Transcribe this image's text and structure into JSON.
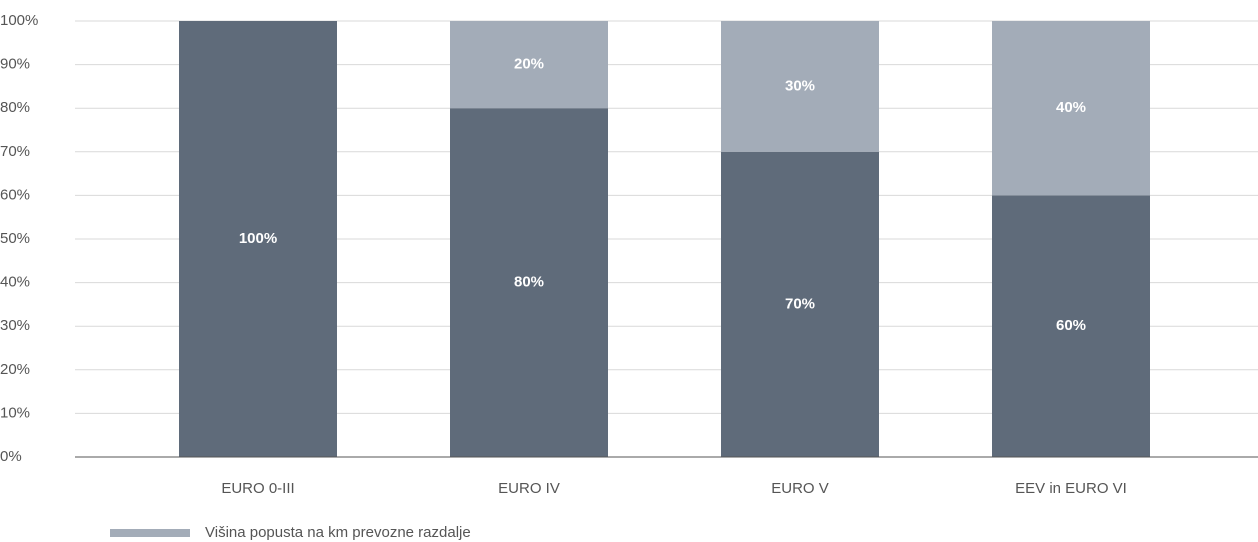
{
  "chart_data": {
    "type": "stacked_bar",
    "categories": [
      "EURO 0-III",
      "EURO IV",
      "EURO V",
      "EEV in EURO VI"
    ],
    "series": [
      {
        "color": "#5f6b7a",
        "values": [
          100,
          80,
          70,
          60
        ],
        "value_labels": [
          "100%",
          "80%",
          "70%",
          "60%"
        ]
      },
      {
        "name": "Višina popusta na km prevozne razdalje",
        "color": "#a3acb8",
        "values": [
          0,
          20,
          30,
          40
        ],
        "value_labels": [
          null,
          "20%",
          "30%",
          "40%"
        ]
      }
    ],
    "ylim": [
      0,
      100
    ],
    "yticks": [
      {
        "value": 0,
        "label": "0%"
      },
      {
        "value": 10,
        "label": "10%"
      },
      {
        "value": 20,
        "label": "20%"
      },
      {
        "value": 30,
        "label": "30%"
      },
      {
        "value": 40,
        "label": "40%"
      },
      {
        "value": 50,
        "label": "50%"
      },
      {
        "value": 60,
        "label": "60%"
      },
      {
        "value": 70,
        "label": "70%"
      },
      {
        "value": 80,
        "label": "80%"
      },
      {
        "value": 90,
        "label": "90%"
      },
      {
        "value": 100,
        "label": "100%"
      }
    ],
    "grid": true,
    "legend": "bottom-left"
  }
}
